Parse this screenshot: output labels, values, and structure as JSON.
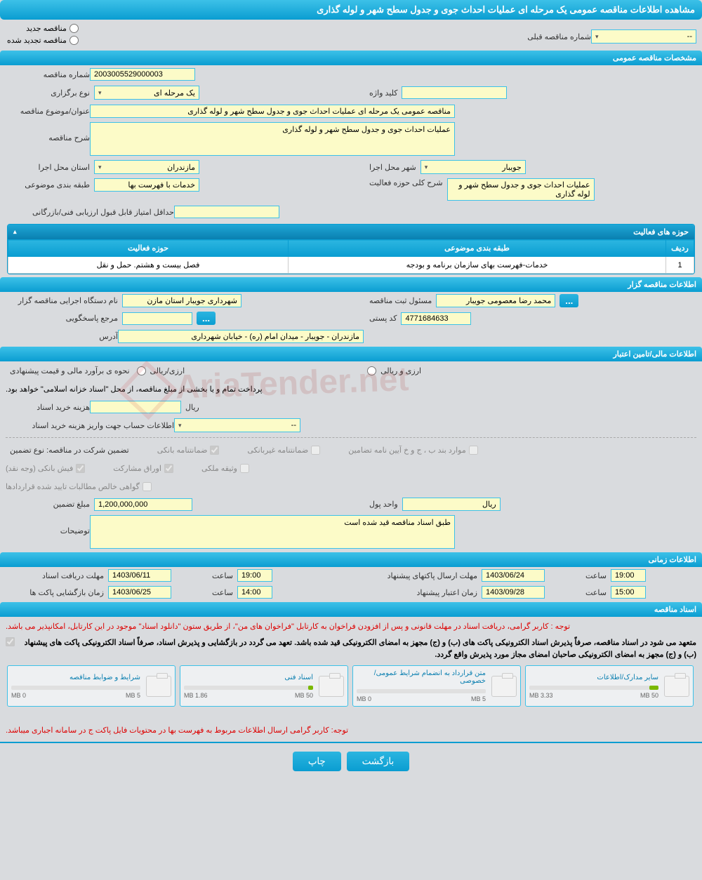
{
  "pageTitle": "مشاهده اطلاعات مناقصه عمومی یک مرحله ای عملیات احداث جوی و جدول سطح شهر و لوله گذاری",
  "topRadios": {
    "new": "مناقصه جدید",
    "renewed": "مناقصه تجدید شده",
    "prevLabel": "شماره مناقصه قبلی",
    "prevValue": "--"
  },
  "sections": {
    "general": "مشخصات مناقصه عمومی",
    "gzar": "اطلاعات مناقصه گزار",
    "financial": "اطلاعات مالی/تامین اعتبار",
    "time": "اطلاعات زمانی",
    "docs": "اسناد مناقصه"
  },
  "general": {
    "tenderNoLabel": "شماره مناقصه",
    "tenderNo": "2003005529000003",
    "typeLabel": "نوع برگزاری",
    "type": "یک مرحله ای",
    "keywordLabel": "کلید واژه",
    "keyword": "",
    "subjectLabel": "عنوان/موضوع مناقصه",
    "subject": "مناقصه عمومی یک مرحله ای عملیات احداث جوی و جدول سطح شهر و لوله گذاری",
    "descLabel": "شرح مناقصه",
    "desc": "عملیات احداث جوی و جدول سطح شهر و لوله گذاری",
    "provinceLabel": "استان محل اجرا",
    "province": "مازندران",
    "cityLabel": "شهر محل اجرا",
    "city": "جویبار",
    "catLabel": "طبقه بندی موضوعی",
    "cat": "خدمات با فهرست بها",
    "scopeLabel": "شرح کلی حوزه فعالیت",
    "scope": "عملیات احداث جوی و جدول سطح شهر و لوله گذاری",
    "minScoreLabel": "حداقل امتیاز قابل قبول ارزیابی فنی/بازرگانی",
    "minScore": ""
  },
  "activityTable": {
    "title": "حوزه های فعالیت",
    "colRow": "ردیف",
    "colCat": "طبقه بندی موضوعی",
    "colScope": "حوزه فعالیت",
    "r1": "1",
    "r1cat": "خدمات-فهرست بهای سازمان برنامه و بودجه",
    "r1scope": "فصل بیست و هشتم. حمل و نقل"
  },
  "gzar": {
    "execLabel": "نام دستگاه اجرایی مناقصه گزار",
    "exec": "شهرداری جویبار استان مازن",
    "regLabel": "مسئول ثبت مناقصه",
    "reg": "محمد رضا  معصومی جویبار",
    "respLabel": "مرجع پاسخگویی",
    "resp": "",
    "postLabel": "کد پستی",
    "post": "4771684633",
    "addrLabel": "آدرس",
    "addr": "مازندران - جویبار - میدان امام (ره) - خیابان شهرداری"
  },
  "financial": {
    "estLabel": "نحوه ی برآورد مالی  و قیمت پیشنهادی",
    "currArzi": "ارزی/ریالی",
    "currBoth": "ارزی و ریالی",
    "note": "پرداخت تمام و یا بخشی از مبلغ مناقصه، از محل \"اسناد خزانه اسلامی\" خواهد بود.",
    "buyLabel": "هزینه خرید اسناد",
    "rial": "ریال",
    "acctLabel": "اطلاعات حساب جهت واریز هزینه خرید اسناد",
    "acct": "--",
    "guarLabel": "تضمین شرکت در مناقصه:   نوع تضمین",
    "g1": "ضمانتنامه بانکی",
    "g2": "ضمانتنامه غیربانکی",
    "g3": "موارد بند ب ، ج و خ آیین نامه تضامین",
    "g4": "فیش بانکی (وجه نقد)",
    "g5": "اوراق مشارکت",
    "g6": "وثیقه ملکی",
    "g7": "گواهی خالص مطالبات تایید شده قراردادها",
    "amtLabel": "مبلغ تضمین",
    "amt": "1,200,000,000",
    "unitLabel": "واحد پول",
    "unit": "ریال",
    "remarksLabel": "توضیحات",
    "remarks": "طبق اسناد مناقصه قید شده است"
  },
  "time": {
    "deadlineLabel": "مهلت دریافت اسناد",
    "deadlineDate": "1403/06/11",
    "timeLabel": "ساعت",
    "deadlineTime": "19:00",
    "sendLabel": "مهلت ارسال پاکتهای پیشنهاد",
    "sendDate": "1403/06/24",
    "sendTime": "19:00",
    "openLabel": "زمان بازگشایی پاکت ها",
    "openDate": "1403/06/25",
    "openTime": "14:00",
    "validLabel": "زمان اعتبار پیشنهاد",
    "validDate": "1403/09/28",
    "validTime": "15:00"
  },
  "docsNote1": "توجه : کاربر گرامی، دریافت اسناد در مهلت قانونی و پس از افزودن فراخوان به کارتابل \"فراخوان های من\"، از طریق ستون \"دانلود اسناد\" موجود در این کارتابل، امکانپذیر می باشد.",
  "docsNote2": "متعهد می شود در اسناد مناقصه، صرفاً پذیرش اسناد الکترونیکی پاکت های (ب) و (ج) مجهز به امضای الکترونیکی قید شده باشد. تعهد می گردد در بازگشایی و پذیرش اسناد، صرفاً اسناد الکترونیکی پاکت های پیشنهاد (ب) و (ج) مجهز به امضای الکترونیکی صاحبان امضای مجاز مورد پذیرش واقع گردد.",
  "docsNote3": "توجه: کاربر گرامی ارسال اطلاعات مربوط به فهرست بها در محتویات فایل پاکت ج در سامانه اجباری میباشد.",
  "docs": [
    {
      "name": "شرایط و ضوابط مناقصه",
      "used": "0 MB",
      "total": "5 MB",
      "pct": 0
    },
    {
      "name": "اسناد فنی",
      "used": "1.86 MB",
      "total": "50 MB",
      "pct": 4
    },
    {
      "name": "متن قرارداد به انضمام شرایط عمومی/خصوصی",
      "used": "0 MB",
      "total": "5 MB",
      "pct": 0
    },
    {
      "name": "سایر مدارک/اطلاعات",
      "used": "3.33 MB",
      "total": "50 MB",
      "pct": 7
    }
  ],
  "buttons": {
    "back": "بازگشت",
    "print": "چاپ"
  },
  "watermark": "AriaTender.net"
}
